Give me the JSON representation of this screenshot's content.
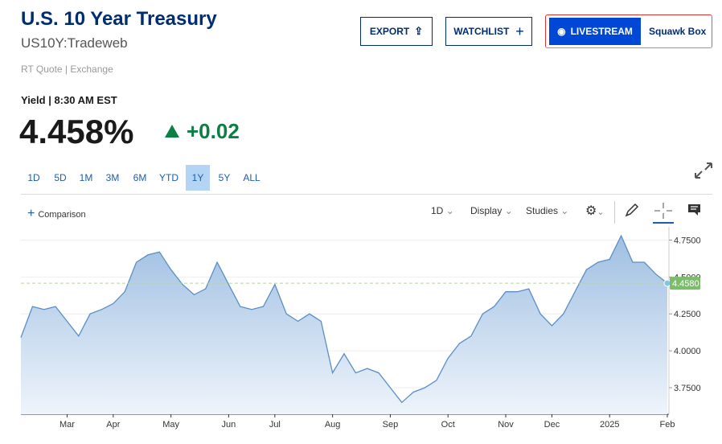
{
  "header": {
    "title": "U.S. 10 Year Treasury",
    "symbol": "US10Y:Tradeweb",
    "source": "RT Quote | Exchange",
    "yield_label": "Yield | 8:30 AM EST",
    "price": "4.458%",
    "change": "+0.02"
  },
  "buttons": {
    "export": "EXPORT",
    "watchlist": "WATCHLIST",
    "livestream": "LIVESTREAM",
    "squawk": "Squawk Box"
  },
  "ranges": [
    "1D",
    "5D",
    "1M",
    "3M",
    "6M",
    "YTD",
    "1Y",
    "5Y",
    "ALL"
  ],
  "selected_range": "1Y",
  "toolbar": {
    "comparison": "Comparison",
    "interval": "1D",
    "display": "Display",
    "studies": "Studies"
  },
  "chart_data": {
    "type": "area",
    "color": "#5b8ec4",
    "categories": [
      null,
      null,
      null,
      null,
      "Mar",
      null,
      null,
      null,
      "Apr",
      null,
      null,
      null,
      null,
      "May",
      null,
      null,
      null,
      null,
      "Jun",
      null,
      null,
      null,
      "Jul",
      null,
      null,
      null,
      null,
      "Aug",
      null,
      null,
      null,
      null,
      "Sep",
      null,
      null,
      null,
      null,
      "Oct",
      null,
      null,
      null,
      null,
      "Nov",
      null,
      null,
      null,
      "Dec",
      null,
      null,
      null,
      null,
      "2025",
      null,
      null,
      null,
      null,
      "Feb"
    ],
    "values": [
      4.09,
      4.3,
      4.28,
      4.3,
      4.2,
      4.1,
      4.25,
      4.28,
      4.32,
      4.4,
      4.6,
      4.65,
      4.67,
      4.55,
      4.45,
      4.38,
      4.42,
      4.6,
      4.45,
      4.3,
      4.28,
      4.3,
      4.45,
      4.25,
      4.2,
      4.25,
      4.2,
      3.85,
      3.98,
      3.85,
      3.88,
      3.85,
      3.75,
      3.65,
      3.72,
      3.75,
      3.8,
      3.95,
      4.05,
      4.1,
      4.25,
      4.3,
      4.4,
      4.4,
      4.42,
      4.25,
      4.17,
      4.25,
      4.4,
      4.55,
      4.6,
      4.62,
      4.78,
      4.6,
      4.6,
      4.52,
      4.458
    ],
    "current": {
      "value": 4.458,
      "label": "4.4580"
    },
    "ylim": [
      3.57,
      4.84
    ],
    "yticks": [
      {
        "value": 3.75,
        "label": "3.7500"
      },
      {
        "value": 4.0,
        "label": "4.0000"
      },
      {
        "value": 4.25,
        "label": "4.2500"
      },
      {
        "value": 4.5,
        "label": "4.5000"
      },
      {
        "value": 4.75,
        "label": "4.7500"
      }
    ],
    "grid": true
  }
}
